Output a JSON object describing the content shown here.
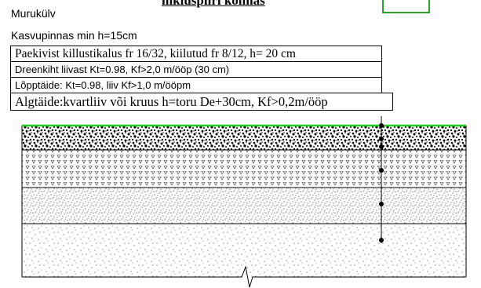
{
  "title": "liikluspiiri kolmas",
  "heading_lines": [
    "Murukülv",
    "Kasvupinnas min h=15cm"
  ],
  "layers": [
    {
      "label": "Paekivist killustikalus fr 16/32, kiilutud fr 8/12, h= 20 cm",
      "style": "serif"
    },
    {
      "label": "Dreenkiht liivast Kt=0.98, Kf>2,0 m/ööp (30 cm)",
      "style": "sans"
    },
    {
      "label": "Lõpptäide: Kt=0.98, liiv Kf>1,0 m/ööpm",
      "style": "sans"
    },
    {
      "label": "Algtäide:kvartliiv või kruus h=toru De+30cm, Kf>0,2m/ööp",
      "style": "serif-large"
    }
  ],
  "colors": {
    "ground_line": "#22cc22",
    "frame": "#000000",
    "callout_box": "#2ca02c"
  }
}
